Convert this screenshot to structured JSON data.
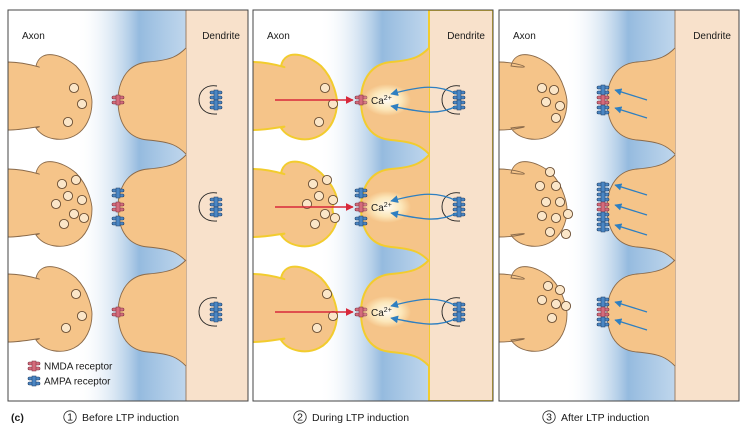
{
  "figure_letter": "(c)",
  "panels": [
    {
      "axon_label": "Axon",
      "dendrite_label": "Dendrite",
      "step": "1",
      "caption": "Before LTP induction"
    },
    {
      "axon_label": "Axon",
      "dendrite_label": "Dendrite",
      "step": "2",
      "caption": "During LTP induction"
    },
    {
      "axon_label": "Axon",
      "dendrite_label": "Dendrite",
      "step": "3",
      "caption": "After LTP induction"
    }
  ],
  "legend": {
    "nmda": "NMDA receptor",
    "ampa": "AMPA receptor"
  },
  "calcium": {
    "symbol": "Ca",
    "charge": "2+"
  },
  "colors": {
    "terminal_fill": "#f5c489",
    "terminal_stroke": "#8a6a4a",
    "active_stroke": "#f2cc2e",
    "dendrite_fill": "#f8e1cb",
    "cleft_blue": "#8fb7dd",
    "nmda": "#d56b7b",
    "ampa": "#4a86c4",
    "arrow_red": "#d8283a",
    "arrow_blue": "#2e7fc1"
  }
}
